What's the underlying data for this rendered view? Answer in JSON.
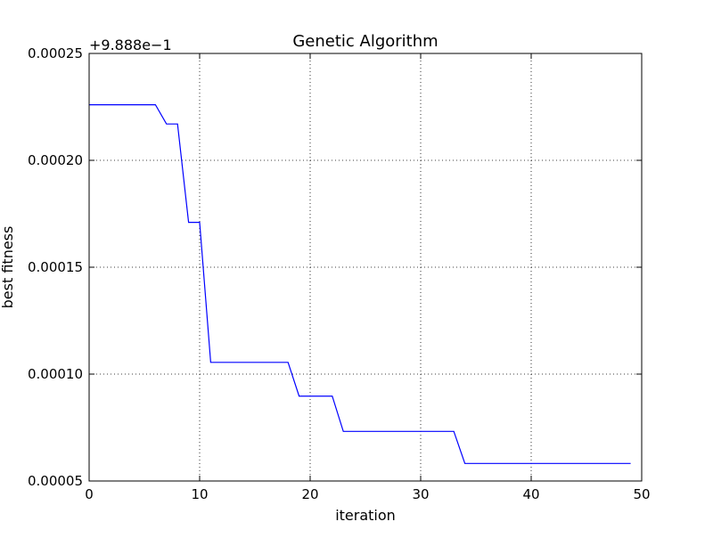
{
  "chart_data": {
    "type": "line",
    "title": "Genetic Algorithm",
    "xlabel": "iteration",
    "ylabel": "best fitness",
    "y_offset_text": "+9.888e−1",
    "xlim": [
      0,
      50
    ],
    "ylim": [
      5e-05,
      0.00025
    ],
    "x_ticks": [
      0,
      10,
      20,
      30,
      40,
      50
    ],
    "x_tick_labels": [
      "0",
      "10",
      "20",
      "30",
      "40",
      "50"
    ],
    "y_ticks": [
      5e-05,
      0.0001,
      0.00015,
      0.0002,
      0.00025
    ],
    "y_tick_labels": [
      "0.00005",
      "0.00010",
      "0.00015",
      "0.00020",
      "0.00025"
    ],
    "grid": true,
    "series": [
      {
        "color": "#0000ff",
        "x": [
          0,
          1,
          2,
          3,
          4,
          5,
          6,
          7,
          8,
          9,
          10,
          11,
          12,
          13,
          14,
          15,
          16,
          17,
          18,
          19,
          20,
          21,
          22,
          23,
          24,
          25,
          26,
          27,
          28,
          29,
          30,
          31,
          32,
          33,
          34,
          35,
          36,
          37,
          38,
          39,
          40,
          41,
          42,
          43,
          44,
          45,
          46,
          47,
          48,
          49
        ],
        "y": [
          0.000226,
          0.000226,
          0.000226,
          0.000226,
          0.000226,
          0.000226,
          0.000226,
          0.000217,
          0.000217,
          0.000171,
          0.000171,
          0.0001055,
          0.0001055,
          0.0001055,
          0.0001055,
          0.0001055,
          0.0001055,
          0.0001055,
          0.0001055,
          8.97e-05,
          8.97e-05,
          8.97e-05,
          8.97e-05,
          7.32e-05,
          7.32e-05,
          7.32e-05,
          7.32e-05,
          7.32e-05,
          7.32e-05,
          7.32e-05,
          7.32e-05,
          7.32e-05,
          7.32e-05,
          7.32e-05,
          5.82e-05,
          5.82e-05,
          5.82e-05,
          5.82e-05,
          5.82e-05,
          5.82e-05,
          5.82e-05,
          5.82e-05,
          5.82e-05,
          5.82e-05,
          5.82e-05,
          5.82e-05,
          5.82e-05,
          5.82e-05,
          5.82e-05,
          5.82e-05
        ]
      }
    ]
  }
}
